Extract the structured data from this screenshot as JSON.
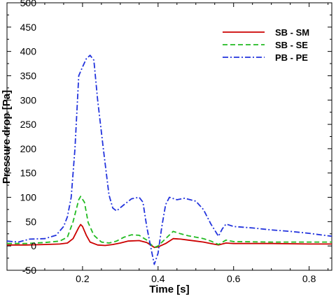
{
  "chart_data": {
    "type": "line",
    "title": "",
    "xlabel": "Time [s]",
    "ylabel": "Pressure drop [Pa]",
    "xlim": [
      0.0,
      0.86
    ],
    "ylim": [
      -50,
      500
    ],
    "xticks": [
      0.2,
      0.4,
      0.6,
      0.8
    ],
    "xtick_labels": [
      "0.2",
      "0.4",
      "0.6",
      "0.8"
    ],
    "yticks": [
      -50,
      0,
      50,
      100,
      150,
      200,
      250,
      300,
      350,
      400,
      450,
      500
    ],
    "ytick_labels": [
      "-50",
      "0",
      "50",
      "100",
      "150",
      "200",
      "250",
      "300",
      "350",
      "400",
      "450",
      "500"
    ],
    "grid": false,
    "legend_position": "top-right",
    "series": [
      {
        "name": "SB - SM",
        "color": "#cc0000",
        "style": "solid",
        "points": [
          [
            0.0,
            2
          ],
          [
            0.05,
            2
          ],
          [
            0.1,
            3
          ],
          [
            0.14,
            4
          ],
          [
            0.16,
            6
          ],
          [
            0.175,
            15
          ],
          [
            0.19,
            38
          ],
          [
            0.195,
            44
          ],
          [
            0.2,
            40
          ],
          [
            0.21,
            22
          ],
          [
            0.22,
            8
          ],
          [
            0.24,
            2
          ],
          [
            0.26,
            1
          ],
          [
            0.28,
            3
          ],
          [
            0.3,
            6
          ],
          [
            0.32,
            10
          ],
          [
            0.35,
            11
          ],
          [
            0.37,
            7
          ],
          [
            0.38,
            2
          ],
          [
            0.39,
            -3
          ],
          [
            0.4,
            -2
          ],
          [
            0.42,
            5
          ],
          [
            0.44,
            15
          ],
          [
            0.46,
            14
          ],
          [
            0.48,
            12
          ],
          [
            0.5,
            10
          ],
          [
            0.52,
            8
          ],
          [
            0.54,
            5
          ],
          [
            0.56,
            2
          ],
          [
            0.58,
            6
          ],
          [
            0.6,
            5
          ],
          [
            0.7,
            5
          ],
          [
            0.8,
            4
          ],
          [
            0.86,
            4
          ]
        ]
      },
      {
        "name": "SB - SE",
        "color": "#22bb22",
        "style": "dashed",
        "points": [
          [
            0.0,
            5
          ],
          [
            0.05,
            5
          ],
          [
            0.1,
            7
          ],
          [
            0.14,
            10
          ],
          [
            0.16,
            18
          ],
          [
            0.175,
            50
          ],
          [
            0.19,
            95
          ],
          [
            0.195,
            102
          ],
          [
            0.205,
            90
          ],
          [
            0.215,
            48
          ],
          [
            0.23,
            22
          ],
          [
            0.25,
            8
          ],
          [
            0.27,
            6
          ],
          [
            0.29,
            10
          ],
          [
            0.31,
            18
          ],
          [
            0.33,
            23
          ],
          [
            0.35,
            22
          ],
          [
            0.37,
            12
          ],
          [
            0.38,
            4
          ],
          [
            0.39,
            -3
          ],
          [
            0.4,
            0
          ],
          [
            0.42,
            15
          ],
          [
            0.44,
            30
          ],
          [
            0.46,
            25
          ],
          [
            0.48,
            21
          ],
          [
            0.5,
            18
          ],
          [
            0.52,
            15
          ],
          [
            0.54,
            10
          ],
          [
            0.56,
            3
          ],
          [
            0.58,
            12
          ],
          [
            0.6,
            9
          ],
          [
            0.7,
            8
          ],
          [
            0.8,
            8
          ],
          [
            0.86,
            8
          ]
        ]
      },
      {
        "name": "PB - PE",
        "color": "#2233dd",
        "style": "dashdot",
        "points": [
          [
            0.0,
            10
          ],
          [
            0.03,
            8
          ],
          [
            0.06,
            14
          ],
          [
            0.1,
            15
          ],
          [
            0.13,
            22
          ],
          [
            0.15,
            40
          ],
          [
            0.16,
            60
          ],
          [
            0.17,
            100
          ],
          [
            0.18,
            200
          ],
          [
            0.19,
            350
          ],
          [
            0.2,
            368
          ],
          [
            0.21,
            385
          ],
          [
            0.22,
            392
          ],
          [
            0.23,
            382
          ],
          [
            0.24,
            300
          ],
          [
            0.255,
            200
          ],
          [
            0.27,
            105
          ],
          [
            0.28,
            78
          ],
          [
            0.29,
            72
          ],
          [
            0.31,
            85
          ],
          [
            0.33,
            97
          ],
          [
            0.35,
            100
          ],
          [
            0.36,
            90
          ],
          [
            0.37,
            40
          ],
          [
            0.38,
            0
          ],
          [
            0.39,
            -38
          ],
          [
            0.4,
            -15
          ],
          [
            0.41,
            40
          ],
          [
            0.42,
            85
          ],
          [
            0.43,
            100
          ],
          [
            0.45,
            95
          ],
          [
            0.47,
            98
          ],
          [
            0.5,
            92
          ],
          [
            0.52,
            75
          ],
          [
            0.54,
            45
          ],
          [
            0.56,
            20
          ],
          [
            0.57,
            35
          ],
          [
            0.58,
            45
          ],
          [
            0.6,
            40
          ],
          [
            0.65,
            37
          ],
          [
            0.7,
            33
          ],
          [
            0.75,
            30
          ],
          [
            0.8,
            26
          ],
          [
            0.86,
            20
          ]
        ]
      }
    ]
  }
}
